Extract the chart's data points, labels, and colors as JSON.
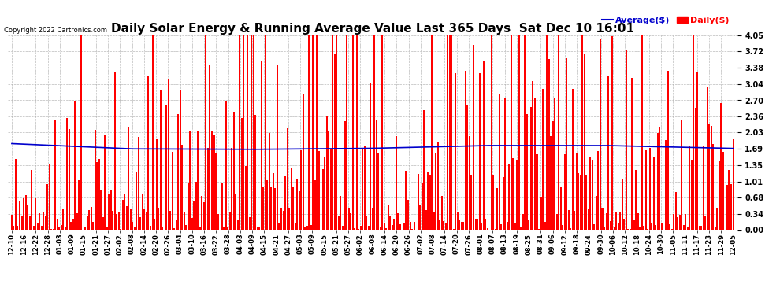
{
  "title": "Daily Solar Energy & Running Average Value Last 365 Days  Sat Dec 10 16:01",
  "copyright": "Copyright 2022 Cartronics.com",
  "legend_avg": "Average($)",
  "legend_daily": "Daily($)",
  "ylim": [
    0.0,
    4.05
  ],
  "yticks": [
    0.0,
    0.34,
    0.68,
    1.01,
    1.35,
    1.69,
    2.03,
    2.36,
    2.7,
    3.04,
    3.38,
    3.72,
    4.05
  ],
  "bar_color": "#ff0000",
  "avg_line_color": "#0000cc",
  "background_color": "#ffffff",
  "title_fontsize": 11,
  "label_fontsize": 7,
  "grid_color": "#aaaaaa",
  "avg_line": [
    1.8,
    1.79,
    1.77,
    1.75,
    1.74,
    1.73,
    1.72,
    1.71,
    1.7,
    1.7,
    1.7,
    1.69,
    1.69,
    1.69,
    1.69,
    1.68,
    1.68,
    1.68,
    1.68,
    1.68,
    1.69,
    1.69,
    1.7,
    1.7,
    1.7,
    1.71,
    1.71,
    1.72,
    1.72,
    1.73,
    1.73,
    1.74,
    1.74,
    1.74,
    1.75,
    1.75,
    1.75,
    1.75,
    1.75,
    1.76,
    1.76,
    1.76,
    1.76,
    1.76,
    1.76,
    1.76,
    1.76,
    1.76,
    1.76,
    1.76,
    1.76,
    1.76,
    1.76,
    1.76,
    1.75,
    1.75,
    1.74,
    1.73,
    1.72,
    1.71,
    1.7
  ],
  "x_labels": [
    "12-10",
    "12-16",
    "12-22",
    "12-28",
    "01-03",
    "01-09",
    "01-15",
    "01-21",
    "01-27",
    "02-02",
    "02-08",
    "02-14",
    "02-20",
    "02-26",
    "03-04",
    "03-10",
    "03-16",
    "03-22",
    "03-28",
    "04-03",
    "04-09",
    "04-15",
    "04-21",
    "04-27",
    "05-03",
    "05-09",
    "05-15",
    "05-21",
    "05-27",
    "06-02",
    "06-08",
    "06-14",
    "06-20",
    "06-26",
    "07-02",
    "07-08",
    "07-14",
    "07-20",
    "07-26",
    "08-01",
    "08-07",
    "08-13",
    "08-19",
    "08-25",
    "08-31",
    "09-06",
    "09-12",
    "09-18",
    "09-24",
    "09-30",
    "10-06",
    "10-12",
    "10-18",
    "10-24",
    "10-30",
    "11-05",
    "11-11",
    "11-17",
    "11-23",
    "11-29",
    "12-05"
  ]
}
